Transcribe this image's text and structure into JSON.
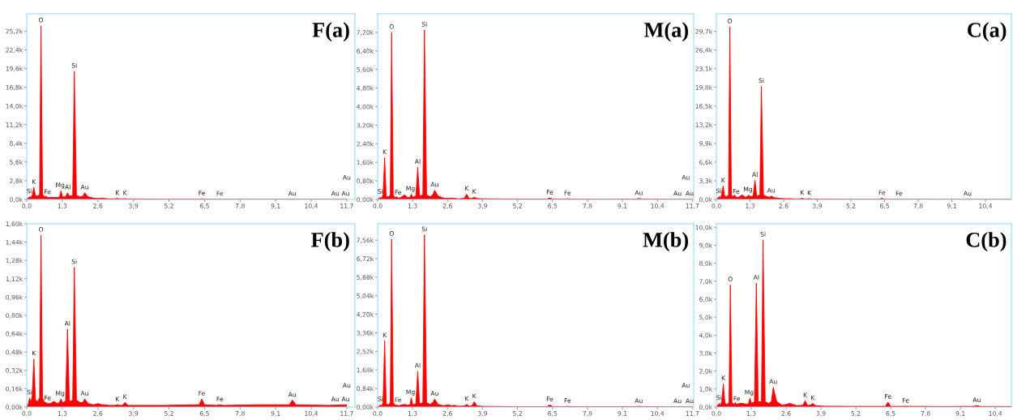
{
  "chart_data": [
    {
      "type": "area",
      "title": "F(a)",
      "x": [
        0,
        0.06,
        0.1,
        0.15,
        0.2,
        0.26,
        0.32,
        0.4,
        0.47,
        0.52,
        0.58,
        0.65,
        0.7,
        0.76,
        0.85,
        1.0,
        1.12,
        1.2,
        1.25,
        1.31,
        1.42,
        1.49,
        1.56,
        1.68,
        1.74,
        1.82,
        1.95,
        2.05,
        2.12,
        2.25,
        2.45,
        2.6,
        2.75,
        2.85,
        3.0,
        3.22,
        3.31,
        3.4,
        3.5,
        3.59,
        3.7,
        4.0,
        5.0,
        6.3,
        6.4,
        6.5,
        6.95,
        7.06,
        7.2,
        8.5,
        9.6,
        9.71,
        9.85,
        11.0,
        11.7
      ],
      "series": [
        {
          "color": "#ff0000",
          "values": [
            0.1,
            0.2,
            0.4,
            0.3,
            0.6,
            1.8,
            0.6,
            0.5,
            0.8,
            26.0,
            0.8,
            0.4,
            0.5,
            0.3,
            0.3,
            0.3,
            0.3,
            0.4,
            1.3,
            0.4,
            0.4,
            1.0,
            0.5,
            0.6,
            19.2,
            0.6,
            0.4,
            0.5,
            1.0,
            0.4,
            0.2,
            0.15,
            0.2,
            0.15,
            0.1,
            0.1,
            0.15,
            0.1,
            0.1,
            0.12,
            0.08,
            0.08,
            0.05,
            0.05,
            0.1,
            0.05,
            0.04,
            0.05,
            0.04,
            0.03,
            0.03,
            0.05,
            0.03,
            0.03,
            0.03
          ]
        }
      ],
      "xlim": [
        0,
        12.0
      ],
      "ylim": [
        0,
        27.8
      ],
      "xticks": [
        {
          "value": 0,
          "label": "0,0"
        },
        {
          "value": 1.3,
          "label": "1,3"
        },
        {
          "value": 2.6,
          "label": "2,6"
        },
        {
          "value": 3.9,
          "label": "3,9"
        },
        {
          "value": 5.2,
          "label": "5,2"
        },
        {
          "value": 6.5,
          "label": "6,5"
        },
        {
          "value": 7.8,
          "label": "7,8"
        },
        {
          "value": 9.1,
          "label": "9,1"
        },
        {
          "value": 10.4,
          "label": "10,4"
        },
        {
          "value": 11.7,
          "label": "11,7"
        }
      ],
      "yticks": [
        {
          "value": 0,
          "label": "0,0k"
        },
        {
          "value": 2.8,
          "label": "2,8k"
        },
        {
          "value": 5.6,
          "label": "5,6k"
        },
        {
          "value": 8.4,
          "label": "8,4k"
        },
        {
          "value": 11.2,
          "label": "11,2k"
        },
        {
          "value": 14.0,
          "label": "14,0k"
        },
        {
          "value": 16.8,
          "label": "16,8k"
        },
        {
          "value": 19.6,
          "label": "19,6k"
        },
        {
          "value": 22.4,
          "label": "22,4k"
        },
        {
          "value": 25.2,
          "label": "25,2k"
        }
      ],
      "annotations": [
        {
          "text": "Si",
          "x": 0.1,
          "y": 0.4
        },
        {
          "text": "K",
          "x": 0.26,
          "y": 1.8
        },
        {
          "text": "O",
          "x": 0.52,
          "y": 26.0
        },
        {
          "text": "Fe",
          "x": 0.76,
          "y": 0.3
        },
        {
          "text": "Mg",
          "x": 1.22,
          "y": 1.3
        },
        {
          "text": "Al",
          "x": 1.5,
          "y": 1.0
        },
        {
          "text": "Si",
          "x": 1.74,
          "y": 19.2
        },
        {
          "text": "Au",
          "x": 2.12,
          "y": 1.0
        },
        {
          "text": "K",
          "x": 3.31,
          "y": 0.15
        },
        {
          "text": "K",
          "x": 3.59,
          "y": 0.12
        },
        {
          "text": "Fe",
          "x": 6.4,
          "y": 0.1
        },
        {
          "text": "Fe",
          "x": 7.06,
          "y": 0.05
        },
        {
          "text": "Au",
          "x": 9.71,
          "y": 0.05
        },
        {
          "text": "Au",
          "x": 11.28,
          "y": 0.05
        },
        "Au",
        {
          "text": "Au",
          "x": 11.66,
          "y": 0.05
        }
      ]
    },
    {
      "type": "area",
      "title": "M(a)",
      "x": [
        0,
        0.06,
        0.1,
        0.15,
        0.2,
        0.26,
        0.32,
        0.4,
        0.47,
        0.52,
        0.58,
        0.65,
        0.7,
        0.76,
        0.85,
        1.0,
        1.12,
        1.2,
        1.25,
        1.31,
        1.42,
        1.49,
        1.56,
        1.68,
        1.74,
        1.82,
        1.95,
        2.05,
        2.12,
        2.25,
        2.45,
        2.6,
        2.75,
        2.85,
        3.0,
        3.22,
        3.31,
        3.4,
        3.5,
        3.59,
        3.7,
        4.0,
        5.0,
        6.3,
        6.4,
        6.5,
        6.95,
        7.06,
        7.2,
        8.5,
        9.6,
        9.71,
        9.85,
        11.0,
        11.7
      ],
      "series": [
        {
          "color": "#ff0000",
          "values": [
            0.02,
            0.05,
            0.1,
            0.05,
            0.2,
            1.8,
            0.15,
            0.1,
            0.2,
            7.2,
            0.2,
            0.08,
            0.12,
            0.06,
            0.08,
            0.2,
            0.08,
            0.1,
            0.23,
            0.1,
            0.15,
            1.39,
            0.15,
            0.2,
            7.3,
            0.2,
            0.12,
            0.2,
            0.4,
            0.15,
            0.06,
            0.05,
            0.06,
            0.05,
            0.03,
            0.05,
            0.23,
            0.05,
            0.04,
            0.1,
            0.04,
            0.03,
            0.02,
            0.02,
            0.07,
            0.02,
            0.02,
            0.03,
            0.02,
            0.01,
            0.02,
            0.04,
            0.02,
            0.01,
            0.01
          ]
        }
      ],
      "xlim": [
        0,
        11.75
      ],
      "ylim": [
        0,
        8.0
      ],
      "xticks": [
        {
          "value": 0,
          "label": "0,0"
        },
        {
          "value": 1.3,
          "label": "1,3"
        },
        {
          "value": 2.6,
          "label": "2,6"
        },
        {
          "value": 3.9,
          "label": "3,9"
        },
        {
          "value": 5.2,
          "label": "5,2"
        },
        {
          "value": 6.5,
          "label": "6,5"
        },
        {
          "value": 7.8,
          "label": "7,8"
        },
        {
          "value": 9.1,
          "label": "9,1"
        },
        {
          "value": 10.4,
          "label": "10,4"
        },
        {
          "value": 11.7,
          "label": "11,7"
        }
      ],
      "yticks": [
        {
          "value": 0,
          "label": "0,00k"
        },
        {
          "value": 0.8,
          "label": "0,80k"
        },
        {
          "value": 1.6,
          "label": "1,60k"
        },
        {
          "value": 2.4,
          "label": "2,40k"
        },
        {
          "value": 3.2,
          "label": "3,20k"
        },
        {
          "value": 4.0,
          "label": "4,00k"
        },
        {
          "value": 4.8,
          "label": "4,80k"
        },
        {
          "value": 5.6,
          "label": "5,60k"
        },
        {
          "value": 6.4,
          "label": "6,40k"
        },
        {
          "value": 7.2,
          "label": "7,20k"
        }
      ],
      "annotations": [
        {
          "text": "Si",
          "x": 0.1,
          "y": 0.1
        },
        {
          "text": "K",
          "x": 0.26,
          "y": 1.8
        },
        {
          "text": "O",
          "x": 0.52,
          "y": 7.2
        },
        {
          "text": "Fe",
          "x": 0.76,
          "y": 0.06
        },
        {
          "text": "Mg",
          "x": 1.22,
          "y": 0.23
        },
        {
          "text": "Al",
          "x": 1.49,
          "y": 1.39
        },
        {
          "text": "Si",
          "x": 1.74,
          "y": 7.3
        },
        {
          "text": "Au",
          "x": 2.12,
          "y": 0.4
        },
        {
          "text": "K",
          "x": 3.31,
          "y": 0.23
        },
        {
          "text": "K",
          "x": 3.59,
          "y": 0.1
        },
        {
          "text": "Fe",
          "x": 6.4,
          "y": 0.07
        },
        {
          "text": "Fe",
          "x": 7.06,
          "y": 0.03
        },
        {
          "text": "Au",
          "x": 9.71,
          "y": 0.04
        },
        {
          "text": "Au",
          "x": 11.15,
          "y": 0.02
        },
        "Au",
        {
          "text": "Au",
          "x": 11.6,
          "y": 0.02
        }
      ]
    },
    {
      "type": "area",
      "title": "C(a)",
      "x": [
        0,
        0.06,
        0.1,
        0.15,
        0.2,
        0.26,
        0.32,
        0.4,
        0.47,
        0.52,
        0.58,
        0.65,
        0.7,
        0.76,
        0.85,
        1.0,
        1.12,
        1.2,
        1.25,
        1.31,
        1.42,
        1.49,
        1.56,
        1.68,
        1.74,
        1.82,
        1.95,
        2.05,
        2.12,
        2.25,
        2.45,
        2.6,
        2.75,
        2.85,
        3.0,
        3.22,
        3.31,
        3.4,
        3.5,
        3.59,
        3.7,
        4.0,
        5.0,
        6.3,
        6.4,
        6.5,
        6.95,
        7.06,
        7.2,
        8.5,
        9.6,
        9.71,
        9.85,
        11.0,
        11.4
      ],
      "series": [
        {
          "color": "#ff0000",
          "values": [
            0.1,
            0.3,
            0.5,
            0.3,
            0.8,
            2.4,
            0.6,
            0.5,
            0.8,
            30.5,
            0.8,
            0.5,
            0.8,
            0.4,
            0.4,
            0.8,
            0.4,
            0.5,
            0.8,
            0.5,
            0.6,
            3.4,
            0.6,
            0.8,
            20.0,
            0.8,
            0.5,
            0.4,
            0.6,
            0.3,
            0.2,
            0.15,
            0.15,
            0.15,
            0.1,
            0.1,
            0.2,
            0.1,
            0.1,
            0.15,
            0.08,
            0.06,
            0.05,
            0.05,
            0.2,
            0.05,
            0.04,
            0.05,
            0.04,
            0.03,
            0.03,
            0.05,
            0.03,
            0.03,
            0.03
          ]
        }
      ],
      "xlim": [
        0,
        11.4
      ],
      "ylim": [
        0,
        32.8
      ],
      "xticks": [
        {
          "value": 0,
          "label": "0,0"
        },
        {
          "value": 1.3,
          "label": "1,3"
        },
        {
          "value": 2.6,
          "label": "2,6"
        },
        {
          "value": 3.9,
          "label": "3,9"
        },
        {
          "value": 5.2,
          "label": "5,2"
        },
        {
          "value": 6.5,
          "label": "6,5"
        },
        {
          "value": 7.8,
          "label": "7,8"
        },
        {
          "value": 9.1,
          "label": "9,1"
        },
        {
          "value": 10.4,
          "label": "10,4"
        }
      ],
      "yticks": [
        {
          "value": 0,
          "label": "0,0k"
        },
        {
          "value": 3.3,
          "label": "3,3k"
        },
        {
          "value": 6.6,
          "label": "6,6k"
        },
        {
          "value": 9.9,
          "label": "9,9k"
        },
        {
          "value": 13.2,
          "label": "13,2k"
        },
        {
          "value": 16.5,
          "label": "16,5k"
        },
        {
          "value": 19.8,
          "label": "19,8k"
        },
        {
          "value": 23.1,
          "label": "23,1k"
        },
        {
          "value": 26.4,
          "label": "26,4k"
        },
        {
          "value": 29.7,
          "label": "29,7k"
        }
      ],
      "annotations": [
        {
          "text": "Si",
          "x": 0.1,
          "y": 0.5
        },
        {
          "text": "K",
          "x": 0.26,
          "y": 2.4
        },
        {
          "text": "O",
          "x": 0.52,
          "y": 30.5
        },
        {
          "text": "Fe",
          "x": 0.76,
          "y": 0.4
        },
        {
          "text": "Mg",
          "x": 1.22,
          "y": 0.8
        },
        {
          "text": "Al",
          "x": 1.49,
          "y": 3.4
        },
        {
          "text": "Si",
          "x": 1.74,
          "y": 20.0
        },
        {
          "text": "Au",
          "x": 2.12,
          "y": 0.6
        },
        {
          "text": "K",
          "x": 3.31,
          "y": 0.2
        },
        {
          "text": "K",
          "x": 3.59,
          "y": 0.15
        },
        {
          "text": "Fe",
          "x": 6.4,
          "y": 0.2
        },
        {
          "text": "Fe",
          "x": 7.06,
          "y": 0.05
        },
        {
          "text": "Au",
          "x": 9.71,
          "y": 0.05
        }
      ]
    },
    {
      "type": "area",
      "title": "F(b)",
      "x": [
        0,
        0.06,
        0.1,
        0.15,
        0.2,
        0.26,
        0.32,
        0.4,
        0.47,
        0.52,
        0.58,
        0.65,
        0.7,
        0.76,
        0.85,
        1.0,
        1.12,
        1.2,
        1.25,
        1.31,
        1.42,
        1.49,
        1.56,
        1.68,
        1.74,
        1.82,
        1.95,
        2.05,
        2.12,
        2.25,
        2.45,
        2.6,
        2.75,
        2.85,
        3.0,
        3.22,
        3.31,
        3.4,
        3.5,
        3.59,
        3.7,
        4.0,
        5.0,
        6.3,
        6.4,
        6.5,
        6.95,
        7.06,
        7.2,
        8.5,
        9.6,
        9.71,
        9.85,
        11.0,
        11.7
      ],
      "series": [
        {
          "color": "#ff0000",
          "values": [
            0.01,
            0.03,
            0.08,
            0.04,
            0.1,
            0.42,
            0.06,
            0.05,
            0.08,
            1.5,
            0.08,
            0.04,
            0.04,
            0.03,
            0.03,
            0.05,
            0.03,
            0.04,
            0.07,
            0.04,
            0.05,
            0.68,
            0.05,
            0.06,
            1.22,
            0.06,
            0.04,
            0.04,
            0.07,
            0.03,
            0.02,
            0.03,
            0.02,
            0.02,
            0.015,
            0.015,
            0.02,
            0.015,
            0.015,
            0.04,
            0.015,
            0.015,
            0.015,
            0.02,
            0.07,
            0.02,
            0.015,
            0.02,
            0.015,
            0.02,
            0.02,
            0.06,
            0.02,
            0.015,
            0.02
          ]
        }
      ],
      "xlim": [
        0,
        12.0
      ],
      "ylim": [
        0,
        1.6
      ],
      "xticks": [
        {
          "value": 0,
          "label": "0,0"
        },
        {
          "value": 1.3,
          "label": "1,3"
        },
        {
          "value": 2.6,
          "label": "2,6"
        },
        {
          "value": 3.9,
          "label": "3,9"
        },
        {
          "value": 5.2,
          "label": "5,2"
        },
        {
          "value": 6.5,
          "label": "6,5"
        },
        {
          "value": 7.8,
          "label": "7,8"
        },
        {
          "value": 9.1,
          "label": "9,1"
        },
        {
          "value": 10.4,
          "label": "10,4"
        },
        {
          "value": 11.7,
          "label": "11,7"
        }
      ],
      "yticks": [
        {
          "value": 0,
          "label": "0,00k"
        },
        {
          "value": 0.16,
          "label": "0,16k"
        },
        {
          "value": 0.32,
          "label": "0,32k"
        },
        {
          "value": 0.48,
          "label": "0,48k"
        },
        {
          "value": 0.64,
          "label": "0,64k"
        },
        {
          "value": 0.8,
          "label": "0,80k"
        },
        {
          "value": 0.96,
          "label": "0,96k"
        },
        {
          "value": 1.12,
          "label": "1,12k"
        },
        {
          "value": 1.28,
          "label": "1,28k"
        },
        {
          "value": 1.44,
          "label": "1,44k"
        },
        {
          "value": 1.6,
          "label": "1,60k"
        }
      ],
      "annotations": [
        {
          "text": "Si",
          "x": 0.1,
          "y": 0.08
        },
        {
          "text": "K",
          "x": 0.26,
          "y": 0.42
        },
        {
          "text": "O",
          "x": 0.52,
          "y": 1.5
        },
        {
          "text": "Fe",
          "x": 0.76,
          "y": 0.03
        },
        {
          "text": "Mg",
          "x": 1.22,
          "y": 0.07
        },
        {
          "text": "Al",
          "x": 1.49,
          "y": 0.68
        },
        {
          "text": "Si",
          "x": 1.74,
          "y": 1.22
        },
        {
          "text": "Au",
          "x": 2.12,
          "y": 0.07
        },
        {
          "text": "K",
          "x": 3.31,
          "y": 0.02
        },
        {
          "text": "K",
          "x": 3.59,
          "y": 0.04
        },
        {
          "text": "Fe",
          "x": 6.4,
          "y": 0.07
        },
        {
          "text": "Fe",
          "x": 7.06,
          "y": 0.02
        },
        {
          "text": "Au",
          "x": 9.71,
          "y": 0.06
        },
        {
          "text": "Au",
          "x": 11.28,
          "y": 0.02
        },
        "Au",
        {
          "text": "Au",
          "x": 11.66,
          "y": 0.02
        }
      ]
    },
    {
      "type": "area",
      "title": "M(b)",
      "x": [
        0,
        0.06,
        0.1,
        0.15,
        0.2,
        0.26,
        0.32,
        0.4,
        0.47,
        0.52,
        0.58,
        0.65,
        0.7,
        0.76,
        0.85,
        1.0,
        1.12,
        1.2,
        1.25,
        1.31,
        1.42,
        1.49,
        1.56,
        1.68,
        1.74,
        1.82,
        1.95,
        2.05,
        2.12,
        2.25,
        2.45,
        2.6,
        2.75,
        2.85,
        3.0,
        3.22,
        3.31,
        3.4,
        3.5,
        3.59,
        3.7,
        4.0,
        5.0,
        6.3,
        6.4,
        6.5,
        6.95,
        7.06,
        7.2,
        8.5,
        9.6,
        9.71,
        9.85,
        11.0,
        11.7
      ],
      "series": [
        {
          "color": "#ff0000",
          "values": [
            0.02,
            0.05,
            0.1,
            0.05,
            0.2,
            3.0,
            0.15,
            0.1,
            0.2,
            7.6,
            0.2,
            0.08,
            0.1,
            0.06,
            0.08,
            0.12,
            0.08,
            0.1,
            0.42,
            0.1,
            0.15,
            1.63,
            0.15,
            0.2,
            7.8,
            0.2,
            0.12,
            0.2,
            0.36,
            0.12,
            0.06,
            0.1,
            0.06,
            0.08,
            0.04,
            0.05,
            0.12,
            0.05,
            0.05,
            0.24,
            0.05,
            0.03,
            0.02,
            0.02,
            0.1,
            0.02,
            0.02,
            0.03,
            0.02,
            0.02,
            0.02,
            0.03,
            0.02,
            0.01,
            0.01
          ]
        }
      ],
      "xlim": [
        0,
        11.75
      ],
      "ylim": [
        0,
        8.3
      ],
      "xticks": [
        {
          "value": 0,
          "label": "0,0"
        },
        {
          "value": 1.3,
          "label": "1,3"
        },
        {
          "value": 2.6,
          "label": "2,6"
        },
        {
          "value": 3.9,
          "label": "3,9"
        },
        {
          "value": 5.2,
          "label": "5,2"
        },
        {
          "value": 6.5,
          "label": "6,5"
        },
        {
          "value": 7.8,
          "label": "7,8"
        },
        {
          "value": 9.1,
          "label": "9,1"
        },
        {
          "value": 10.4,
          "label": "10,4"
        },
        {
          "value": 11.7,
          "label": "11,7"
        }
      ],
      "yticks": [
        {
          "value": 0,
          "label": "0,00k"
        },
        {
          "value": 0.84,
          "label": "0,84k"
        },
        {
          "value": 1.68,
          "label": "1,68k"
        },
        {
          "value": 2.52,
          "label": "2,52k"
        },
        {
          "value": 3.36,
          "label": "3,36k"
        },
        {
          "value": 4.2,
          "label": "4,20k"
        },
        {
          "value": 5.04,
          "label": "5,04k"
        },
        {
          "value": 5.88,
          "label": "5,88k"
        },
        {
          "value": 6.72,
          "label": "6,72k"
        },
        {
          "value": 7.56,
          "label": "7,56k"
        }
      ],
      "annotations": [
        {
          "text": "Si",
          "x": 0.1,
          "y": 0.1
        },
        {
          "text": "K",
          "x": 0.26,
          "y": 3.0
        },
        {
          "text": "O",
          "x": 0.52,
          "y": 7.6
        },
        {
          "text": "Fe",
          "x": 0.76,
          "y": 0.06
        },
        {
          "text": "Mg",
          "x": 1.22,
          "y": 0.42
        },
        {
          "text": "Al",
          "x": 1.49,
          "y": 1.63
        },
        {
          "text": "Si",
          "x": 1.74,
          "y": 7.8
        },
        {
          "text": "Au",
          "x": 2.12,
          "y": 0.36
        },
        {
          "text": "K",
          "x": 3.31,
          "y": 0.12
        },
        {
          "text": "K",
          "x": 3.59,
          "y": 0.24
        },
        {
          "text": "Fe",
          "x": 6.4,
          "y": 0.1
        },
        {
          "text": "Fe",
          "x": 7.06,
          "y": 0.03
        },
        {
          "text": "Au",
          "x": 9.71,
          "y": 0.03
        },
        {
          "text": "Au",
          "x": 11.15,
          "y": 0.02
        },
        "Au",
        {
          "text": "Au",
          "x": 11.6,
          "y": 0.02
        }
      ]
    },
    {
      "type": "area",
      "title": "C(b)",
      "x": [
        0,
        0.06,
        0.1,
        0.15,
        0.2,
        0.26,
        0.32,
        0.4,
        0.47,
        0.52,
        0.58,
        0.65,
        0.7,
        0.76,
        0.85,
        1.0,
        1.12,
        1.2,
        1.25,
        1.31,
        1.42,
        1.49,
        1.56,
        1.68,
        1.74,
        1.82,
        1.95,
        2.05,
        2.12,
        2.25,
        2.45,
        2.6,
        2.75,
        2.85,
        3.0,
        3.22,
        3.31,
        3.4,
        3.5,
        3.59,
        3.7,
        4.0,
        5.0,
        6.3,
        6.4,
        6.5,
        6.95,
        7.06,
        7.2,
        8.5,
        9.6,
        9.71,
        9.85,
        11.0
      ],
      "series": [
        {
          "color": "#ff0000",
          "values": [
            0.05,
            0.1,
            0.2,
            0.1,
            0.3,
            1.3,
            0.2,
            0.15,
            0.25,
            6.8,
            0.25,
            0.15,
            0.25,
            0.15,
            0.2,
            0.2,
            0.15,
            0.2,
            0.5,
            0.2,
            0.3,
            6.9,
            0.3,
            0.3,
            9.3,
            0.3,
            0.2,
            0.3,
            1.1,
            0.3,
            0.1,
            0.15,
            0.2,
            0.15,
            0.08,
            0.1,
            0.35,
            0.1,
            0.1,
            0.2,
            0.08,
            0.05,
            0.04,
            0.04,
            0.27,
            0.04,
            0.04,
            0.05,
            0.04,
            0.03,
            0.04,
            0.08,
            0.03,
            0.03
          ]
        }
      ],
      "xlim": [
        0,
        11.0
      ],
      "ylim": [
        0,
        10.2
      ],
      "xticks": [
        {
          "value": 0,
          "label": "0,0"
        },
        {
          "value": 1.3,
          "label": "1,3"
        },
        {
          "value": 2.6,
          "label": "2,6"
        },
        {
          "value": 3.9,
          "label": "3,9"
        },
        {
          "value": 5.2,
          "label": "5,2"
        },
        {
          "value": 6.5,
          "label": "6,5"
        },
        {
          "value": 7.8,
          "label": "7,8"
        },
        {
          "value": 9.1,
          "label": "9,1"
        },
        {
          "value": 10.4,
          "label": "10,4"
        }
      ],
      "yticks": [
        {
          "value": 0,
          "label": "0,0k"
        },
        {
          "value": 1,
          "label": "1,0k"
        },
        {
          "value": 2,
          "label": "2,0k"
        },
        {
          "value": 3,
          "label": "3,0k"
        },
        {
          "value": 4,
          "label": "4,0k"
        },
        {
          "value": 5,
          "label": "5,0k"
        },
        {
          "value": 6,
          "label": "6,0k"
        },
        {
          "value": 7,
          "label": "7,0k"
        },
        {
          "value": 8,
          "label": "8,0k"
        },
        {
          "value": 9,
          "label": "9,0k"
        },
        {
          "value": 10,
          "label": "10,0k"
        }
      ],
      "annotations": [
        {
          "text": "Si",
          "x": 0.1,
          "y": 0.2
        },
        {
          "text": "K",
          "x": 0.26,
          "y": 1.3
        },
        {
          "text": "O",
          "x": 0.52,
          "y": 6.8
        },
        {
          "text": "Fe",
          "x": 0.76,
          "y": 0.15
        },
        {
          "text": "Mg",
          "x": 1.22,
          "y": 0.5
        },
        {
          "text": "Al",
          "x": 1.49,
          "y": 6.9
        },
        {
          "text": "Si",
          "x": 1.74,
          "y": 9.3
        },
        {
          "text": "Au",
          "x": 2.12,
          "y": 1.1
        },
        {
          "text": "K",
          "x": 3.31,
          "y": 0.35
        },
        {
          "text": "K",
          "x": 3.59,
          "y": 0.2
        },
        {
          "text": "Fe",
          "x": 6.4,
          "y": 0.27
        },
        {
          "text": "Fe",
          "x": 7.06,
          "y": 0.05
        },
        {
          "text": "Au",
          "x": 9.71,
          "y": 0.08
        }
      ]
    }
  ]
}
